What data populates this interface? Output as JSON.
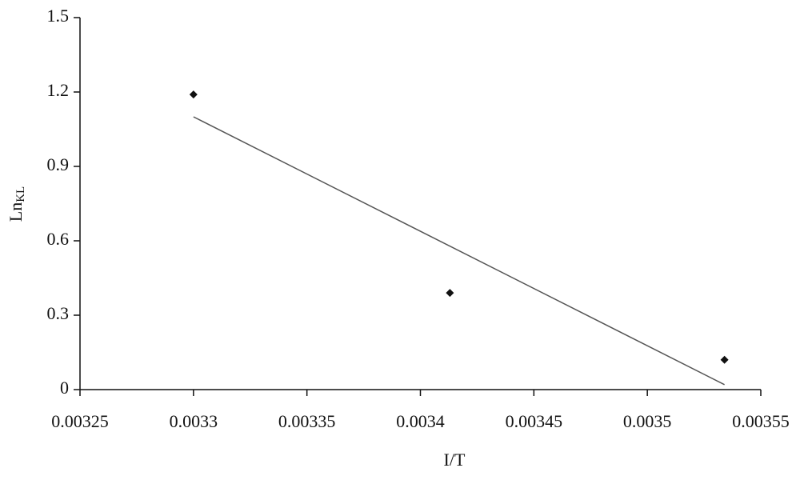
{
  "chart_data": {
    "type": "scatter",
    "xlabel": "I/T",
    "ylabel": "Ln",
    "ylabel_sub": "KL",
    "x": [
      0.0033,
      0.003413,
      0.003534
    ],
    "values": [
      1.19,
      0.39,
      0.12
    ],
    "color": "#111111",
    "trendline": {
      "x": [
        0.0033,
        0.003534
      ],
      "values": [
        1.1,
        0.02
      ],
      "color": "#555555"
    },
    "xlim": [
      0.00325,
      0.00355
    ],
    "xticks": [
      0.00325,
      0.0033,
      0.00335,
      0.0034,
      0.00345,
      0.0035,
      0.00355
    ],
    "ylim": [
      0,
      1.5
    ],
    "yticks": [
      0,
      0.3,
      0.6,
      0.9,
      1.2,
      1.5
    ],
    "grid": false
  }
}
